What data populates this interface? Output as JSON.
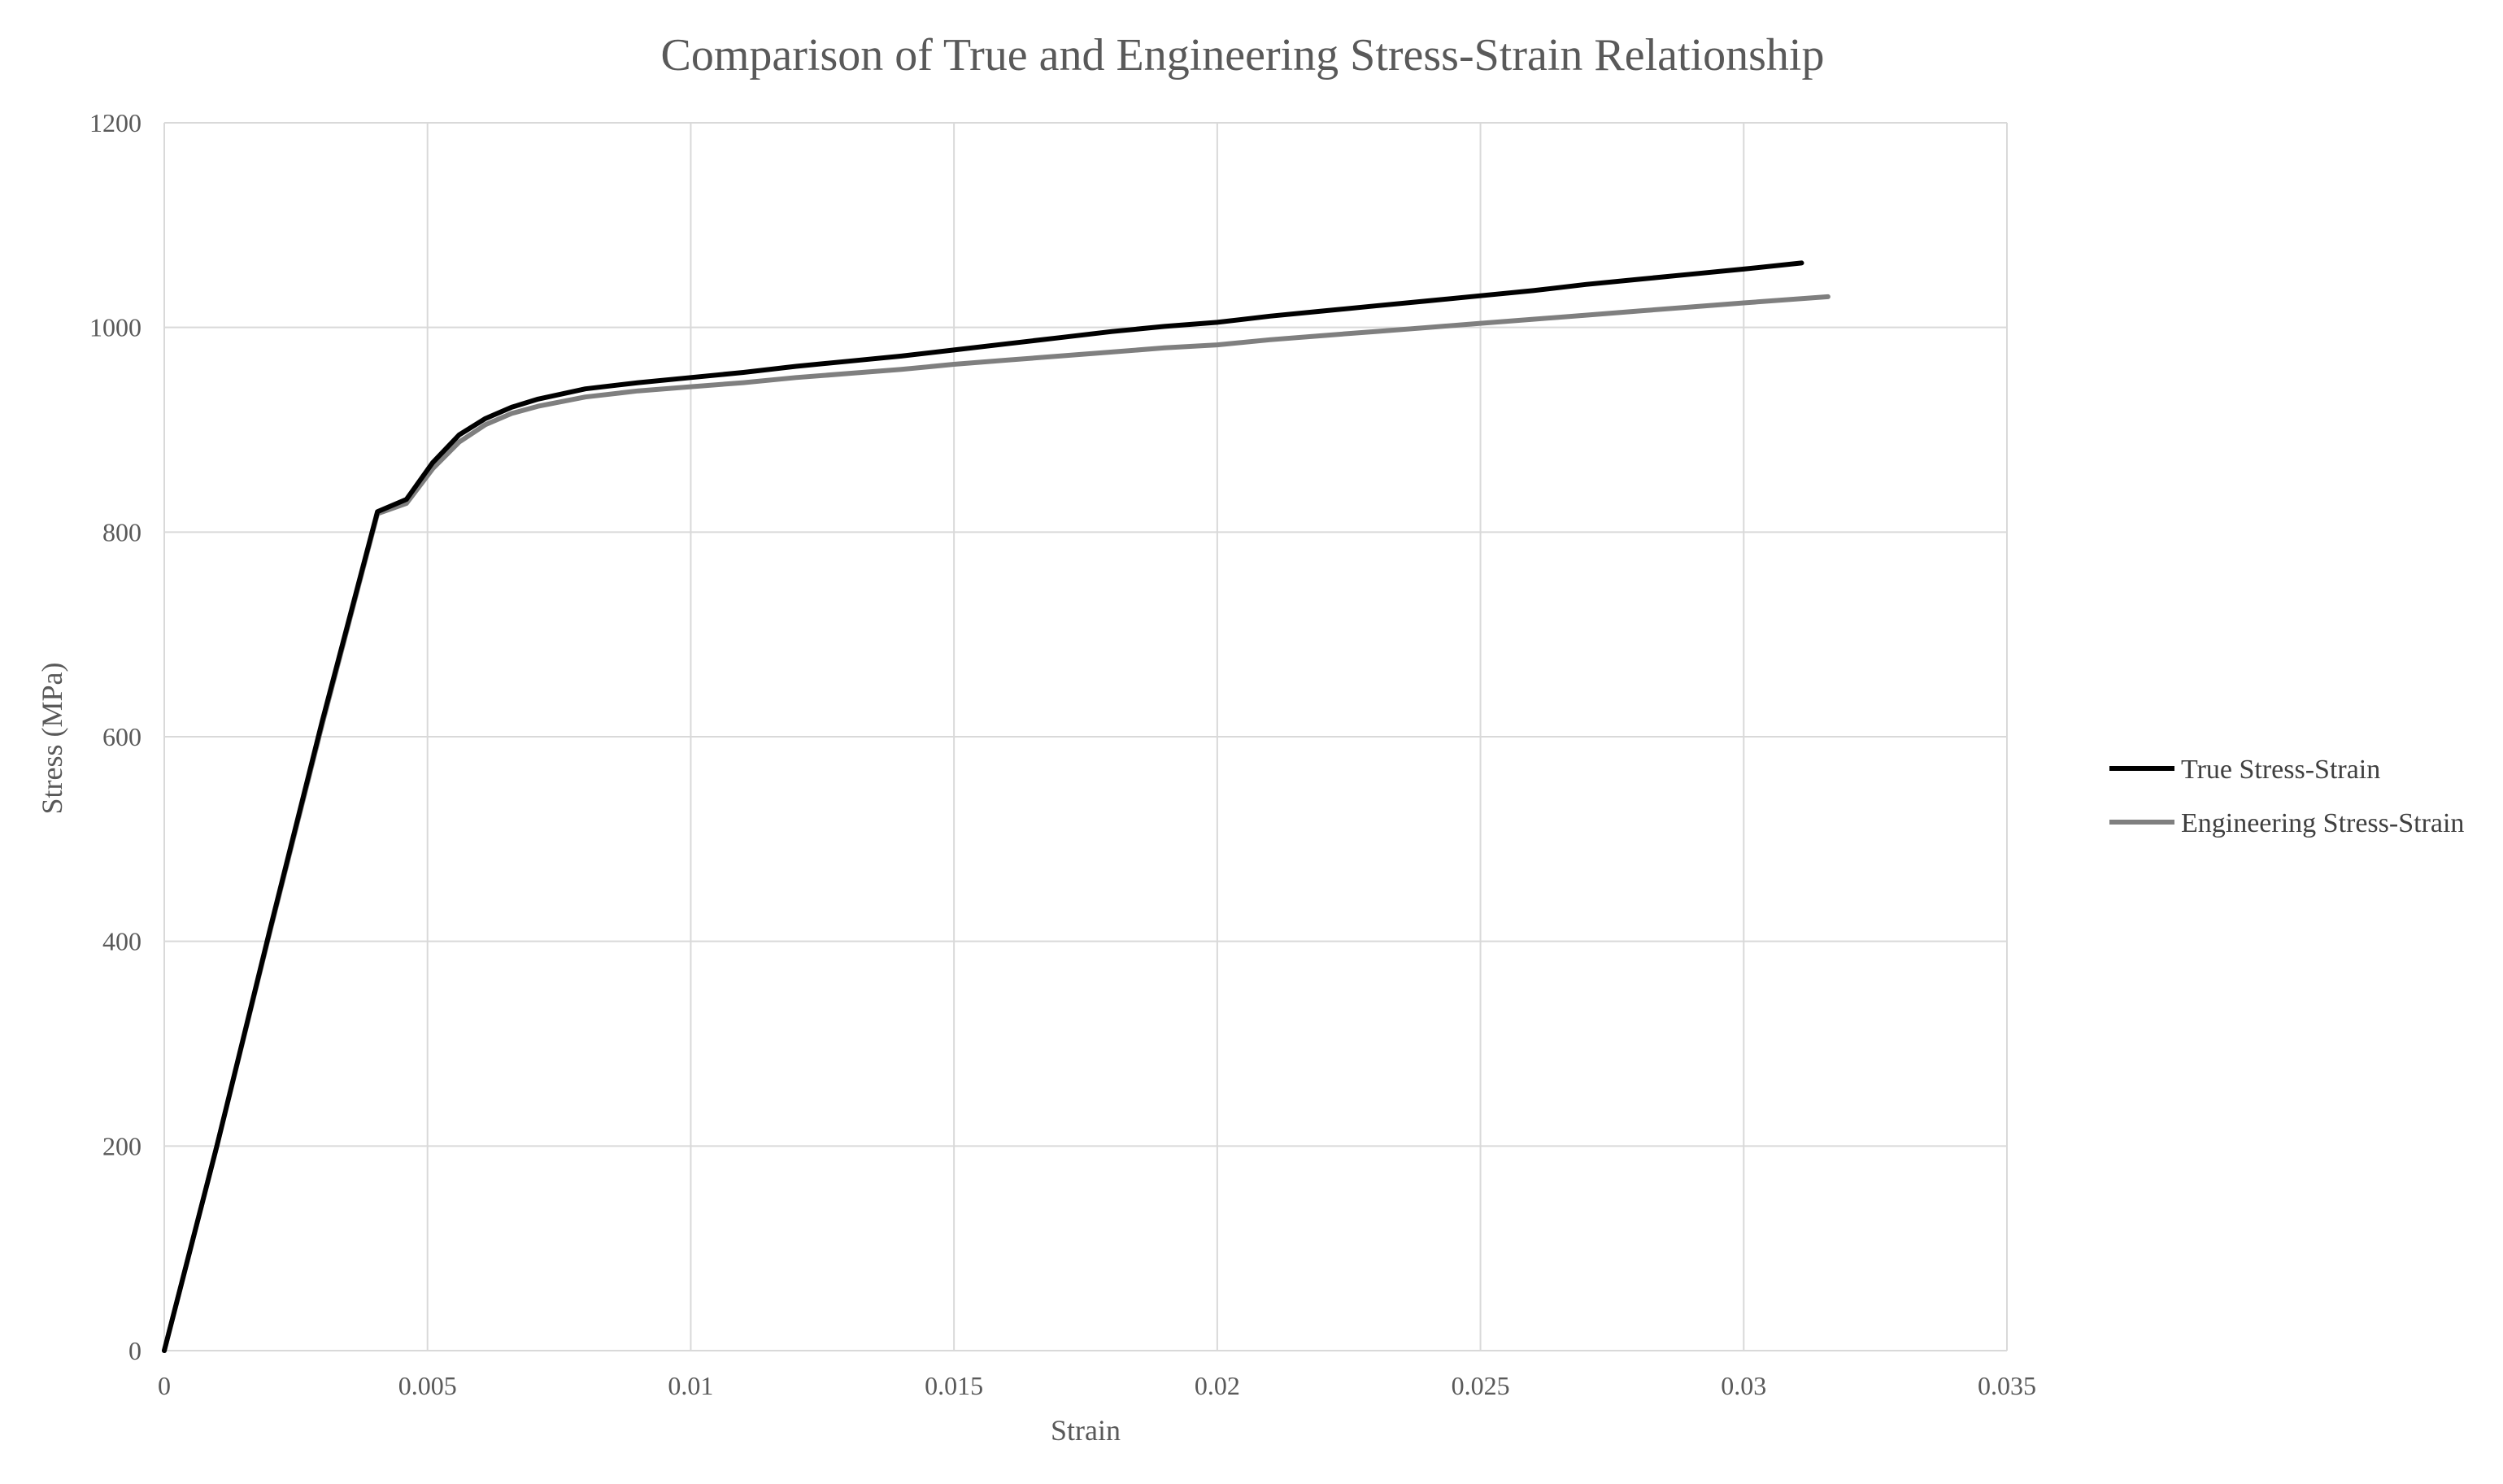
{
  "chart_data": {
    "type": "line",
    "title": "Comparison of True and Engineering Stress-Strain Relationship",
    "xlabel": "Strain",
    "ylabel": "Stress (MPa)",
    "xlim": [
      0,
      0.035
    ],
    "ylim": [
      0,
      1200
    ],
    "x_ticks": [
      0,
      0.005,
      0.01,
      0.015,
      0.02,
      0.025,
      0.03,
      0.035
    ],
    "x_tick_labels": [
      "0",
      "0.005",
      "0.01",
      "0.015",
      "0.02",
      "0.025",
      "0.03",
      "0.035"
    ],
    "y_ticks": [
      0,
      200,
      400,
      600,
      800,
      1000,
      1200
    ],
    "y_tick_labels": [
      "0",
      "200",
      "400",
      "600",
      "800",
      "1000",
      "1200"
    ],
    "grid": true,
    "legend_position": "right",
    "series": [
      {
        "name": "True Stress-Strain",
        "color": "#000000",
        "points": [
          [
            0,
            0
          ],
          [
            0.001,
            200
          ],
          [
            0.002,
            410
          ],
          [
            0.003,
            615
          ],
          [
            0.00405,
            820
          ],
          [
            0.0046,
            832
          ],
          [
            0.0051,
            868
          ],
          [
            0.0056,
            895
          ],
          [
            0.0061,
            911
          ],
          [
            0.0066,
            922
          ],
          [
            0.0071,
            930
          ],
          [
            0.008,
            940
          ],
          [
            0.009,
            946
          ],
          [
            0.01,
            951
          ],
          [
            0.011,
            956
          ],
          [
            0.012,
            962
          ],
          [
            0.013,
            967
          ],
          [
            0.014,
            972
          ],
          [
            0.015,
            978
          ],
          [
            0.016,
            984
          ],
          [
            0.017,
            990
          ],
          [
            0.018,
            996
          ],
          [
            0.019,
            1001
          ],
          [
            0.02,
            1005
          ],
          [
            0.021,
            1011
          ],
          [
            0.022,
            1016
          ],
          [
            0.023,
            1021
          ],
          [
            0.024,
            1026
          ],
          [
            0.025,
            1031
          ],
          [
            0.026,
            1036
          ],
          [
            0.027,
            1042
          ],
          [
            0.028,
            1047
          ],
          [
            0.029,
            1052
          ],
          [
            0.03,
            1057
          ],
          [
            0.0311,
            1063
          ]
        ]
      },
      {
        "name": "Engineering Stress-Strain",
        "color": "#7f7f7f",
        "points": [
          [
            0,
            0
          ],
          [
            0.001,
            200
          ],
          [
            0.002,
            408
          ],
          [
            0.003,
            612
          ],
          [
            0.00405,
            818
          ],
          [
            0.0046,
            828
          ],
          [
            0.0051,
            862
          ],
          [
            0.0056,
            888
          ],
          [
            0.0061,
            905
          ],
          [
            0.0066,
            916
          ],
          [
            0.0071,
            923
          ],
          [
            0.008,
            932
          ],
          [
            0.009,
            938
          ],
          [
            0.01,
            942
          ],
          [
            0.011,
            946
          ],
          [
            0.012,
            951
          ],
          [
            0.013,
            955
          ],
          [
            0.014,
            959
          ],
          [
            0.015,
            964
          ],
          [
            0.016,
            968
          ],
          [
            0.017,
            972
          ],
          [
            0.018,
            976
          ],
          [
            0.019,
            980
          ],
          [
            0.02,
            983
          ],
          [
            0.021,
            988
          ],
          [
            0.022,
            992
          ],
          [
            0.023,
            996
          ],
          [
            0.024,
            1000
          ],
          [
            0.025,
            1004
          ],
          [
            0.026,
            1008
          ],
          [
            0.027,
            1012
          ],
          [
            0.028,
            1016
          ],
          [
            0.029,
            1020
          ],
          [
            0.03,
            1024
          ],
          [
            0.0316,
            1030
          ]
        ]
      }
    ]
  }
}
